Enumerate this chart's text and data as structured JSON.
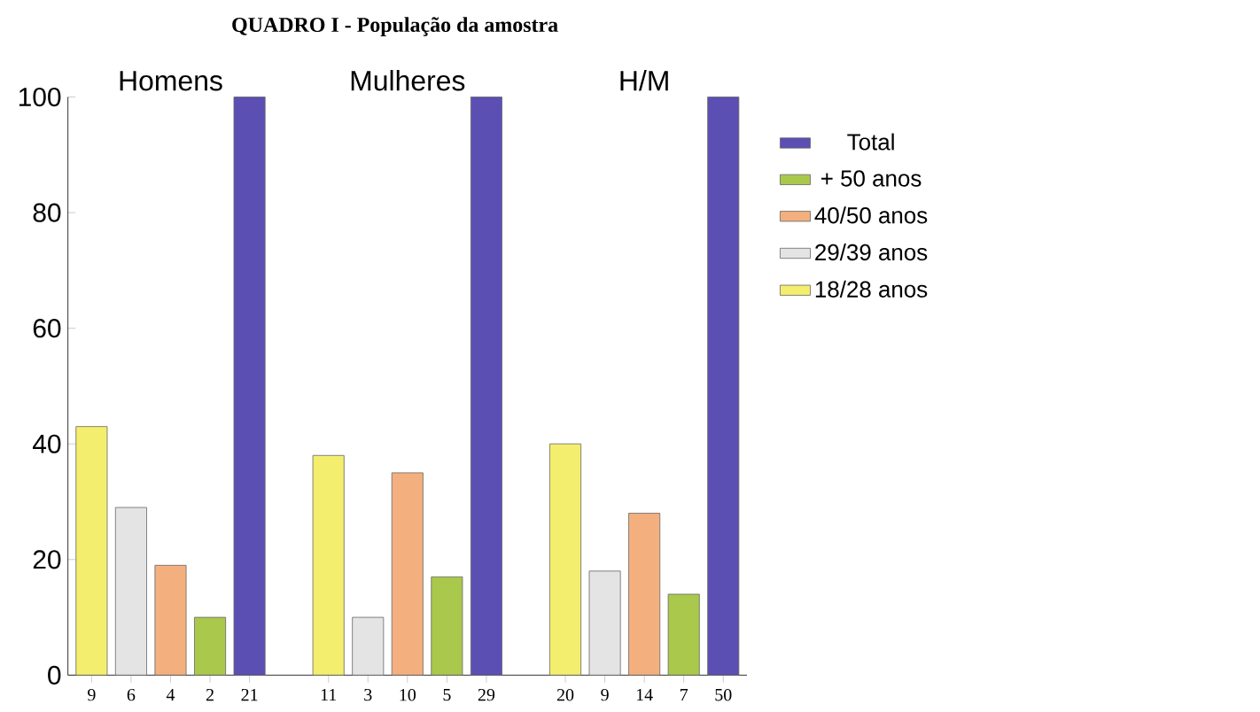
{
  "chart_data": {
    "type": "bar",
    "title": "QUADRO I - População da amostra",
    "categories": [
      "9",
      "6",
      "4",
      "2",
      "21",
      null,
      "11",
      "3",
      "10",
      "5",
      "29",
      null,
      "20",
      "9",
      "14",
      "7",
      "50"
    ],
    "series": [
      {
        "name": "18/28 anos",
        "color": "#f4ee6e",
        "values": [
          43,
          null,
          null,
          null,
          null,
          null,
          38,
          null,
          null,
          null,
          null,
          null,
          40,
          null,
          null,
          null,
          null
        ]
      },
      {
        "name": "29/39 anos",
        "color": "#e4e4e4",
        "values": [
          null,
          29,
          null,
          null,
          null,
          null,
          null,
          10,
          null,
          null,
          null,
          null,
          null,
          18,
          null,
          null,
          null
        ]
      },
      {
        "name": "40/50 anos",
        "color": "#f3b07e",
        "values": [
          null,
          null,
          19,
          null,
          null,
          null,
          null,
          null,
          35,
          null,
          null,
          null,
          null,
          null,
          28,
          null,
          null
        ]
      },
      {
        "name": "+ 50 anos",
        "color": "#a9c84c",
        "values": [
          null,
          null,
          null,
          10,
          null,
          null,
          null,
          null,
          null,
          17,
          null,
          null,
          null,
          null,
          null,
          14,
          null
        ]
      },
      {
        "name": "Total",
        "color": "#5b4fb4",
        "values": [
          null,
          null,
          null,
          null,
          100,
          null,
          null,
          null,
          null,
          null,
          100,
          null,
          null,
          null,
          null,
          null,
          100
        ]
      }
    ],
    "annotations": [
      "Homens",
      "Mulheres",
      "H/M"
    ],
    "ylim": [
      0,
      100
    ],
    "yticks": [
      0,
      20,
      40,
      60,
      80,
      100
    ],
    "grid": false,
    "legend": "right"
  }
}
